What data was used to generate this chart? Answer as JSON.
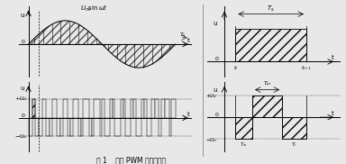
{
  "bg_color": "#e8e8e8",
  "fig_w": 3.84,
  "fig_h": 1.82,
  "title": "图 1    直接 PWM 的调制原理",
  "sine_label": "$U_m\\!\\sin\\omega t$",
  "Ts_label": "$T_s$",
  "Tpi_label": "$T_{pi}$",
  "ti_label": "$t_i$",
  "ti1_label": "$t_{i\\!+\\!1}$",
  "Tei_label": "$T_{ei}$",
  "Ti_label": "$T_i$",
  "u_label": "u",
  "Ud_plus": "$+U_d$",
  "Ud_minus": "$-U_d$"
}
